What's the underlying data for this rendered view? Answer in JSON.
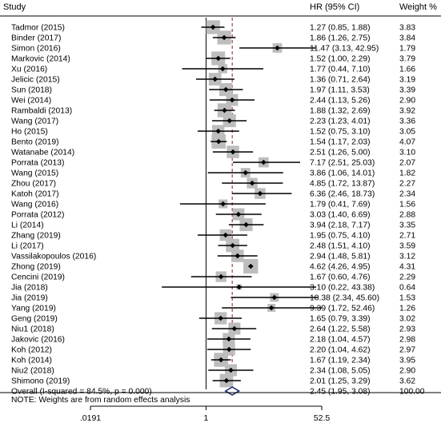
{
  "header": {
    "study": "Study",
    "hr": "HR (95% CI)",
    "weight": "Weight %"
  },
  "chart_data": {
    "type": "forest",
    "scale": "log",
    "xlim": [
      0.0191,
      52.5
    ],
    "x_ticks": [
      ".0191",
      "1",
      "52.5"
    ],
    "null_line": 1,
    "studies": [
      {
        "study": "Tadmor (2015)",
        "hr": 1.27,
        "lo": 0.85,
        "hi": 1.88,
        "ci_text": "1.27 (0.85, 1.88)",
        "weight": "3.83"
      },
      {
        "study": "Binder (2017)",
        "hr": 1.86,
        "lo": 1.26,
        "hi": 2.75,
        "ci_text": "1.86 (1.26, 2.75)",
        "weight": "3.84"
      },
      {
        "study": "Simon (2016)",
        "hr": 11.47,
        "lo": 3.13,
        "hi": 42.95,
        "ci_text": "11.47 (3.13, 42.95)",
        "weight": "1.79"
      },
      {
        "study": "Markovic (2014)",
        "hr": 1.52,
        "lo": 1.0,
        "hi": 2.29,
        "ci_text": "1.52 (1.00, 2.29)",
        "weight": "3.79"
      },
      {
        "study": "Xu (2016)",
        "hr": 1.77,
        "lo": 0.44,
        "hi": 7.1,
        "ci_text": "1.77 (0.44, 7.10)",
        "weight": "1.66"
      },
      {
        "study": "Jelicic (2015)",
        "hr": 1.36,
        "lo": 0.71,
        "hi": 2.64,
        "ci_text": "1.36 (0.71, 2.64)",
        "weight": "3.19"
      },
      {
        "study": "Sun (2018)",
        "hr": 1.97,
        "lo": 1.11,
        "hi": 3.53,
        "ci_text": "1.97 (1.11, 3.53)",
        "weight": "3.39"
      },
      {
        "study": "Wei (2014)",
        "hr": 2.44,
        "lo": 1.13,
        "hi": 5.26,
        "ci_text": "2.44 (1.13, 5.26)",
        "weight": "2.90"
      },
      {
        "study": "Rambaldi (2013)",
        "hr": 1.88,
        "lo": 1.32,
        "hi": 2.69,
        "ci_text": "1.88 (1.32, 2.69)",
        "weight": "3.92"
      },
      {
        "study": "Wang (2017)",
        "hr": 2.23,
        "lo": 1.23,
        "hi": 4.01,
        "ci_text": "2.23 (1.23, 4.01)",
        "weight": "3.36"
      },
      {
        "study": "Ho (2015)",
        "hr": 1.52,
        "lo": 0.75,
        "hi": 3.1,
        "ci_text": "1.52 (0.75, 3.10)",
        "weight": "3.05"
      },
      {
        "study": "Bento (2019)",
        "hr": 1.54,
        "lo": 1.17,
        "hi": 2.03,
        "ci_text": "1.54 (1.17, 2.03)",
        "weight": "4.07"
      },
      {
        "study": "Watanabe (2014)",
        "hr": 2.51,
        "lo": 1.26,
        "hi": 5.0,
        "ci_text": "2.51 (1.26, 5.00)",
        "weight": "3.10"
      },
      {
        "study": "Porrata (2013)",
        "hr": 7.17,
        "lo": 2.51,
        "hi": 25.03,
        "ci_text": "7.17 (2.51, 25.03)",
        "weight": "2.07"
      },
      {
        "study": "Wang (2015)",
        "hr": 3.86,
        "lo": 1.06,
        "hi": 14.01,
        "ci_text": "3.86 (1.06, 14.01)",
        "weight": "1.82"
      },
      {
        "study": "Zhou (2017)",
        "hr": 4.85,
        "lo": 1.72,
        "hi": 13.87,
        "ci_text": "4.85 (1.72, 13.87)",
        "weight": "2.27"
      },
      {
        "study": "Katoh (2017)",
        "hr": 6.36,
        "lo": 2.46,
        "hi": 18.73,
        "ci_text": "6.36 (2.46, 18.73)",
        "weight": "2.34"
      },
      {
        "study": "Wang (2016)",
        "hr": 1.79,
        "lo": 0.41,
        "hi": 7.69,
        "ci_text": "1.79 (0.41, 7.69)",
        "weight": "1.56"
      },
      {
        "study": "Porrata (2012)",
        "hr": 3.03,
        "lo": 1.4,
        "hi": 6.69,
        "ci_text": "3.03 (1.40, 6.69)",
        "weight": "2.88"
      },
      {
        "study": "Li (2014)",
        "hr": 3.94,
        "lo": 2.18,
        "hi": 7.17,
        "ci_text": "3.94 (2.18, 7.17)",
        "weight": "3.35"
      },
      {
        "study": "Zhang (2019)",
        "hr": 1.95,
        "lo": 0.75,
        "hi": 4.1,
        "ci_text": "1.95 (0.75, 4.10)",
        "weight": "2.71"
      },
      {
        "study": "Li (2017)",
        "hr": 2.48,
        "lo": 1.51,
        "hi": 4.1,
        "ci_text": "2.48 (1.51, 4.10)",
        "weight": "3.59"
      },
      {
        "study": "Vassilakopoulos (2016)",
        "hr": 2.94,
        "lo": 1.48,
        "hi": 5.81,
        "ci_text": "2.94 (1.48, 5.81)",
        "weight": "3.12"
      },
      {
        "study": "Zhong (2019)",
        "hr": 4.62,
        "lo": 4.26,
        "hi": 4.95,
        "ci_text": "4.62 (4.26, 4.95)",
        "weight": "4.31"
      },
      {
        "study": "Cencini (2019)",
        "hr": 1.67,
        "lo": 0.6,
        "hi": 4.76,
        "ci_text": "1.67 (0.60, 4.76)",
        "weight": "2.29"
      },
      {
        "study": "Jia (2018)",
        "hr": 3.1,
        "lo": 0.22,
        "hi": 43.38,
        "ci_text": "3.10 (0.22, 43.38)",
        "weight": "0.64"
      },
      {
        "study": "Jia (2019)",
        "hr": 10.38,
        "lo": 2.34,
        "hi": 45.6,
        "ci_text": "10.38 (2.34, 45.60)",
        "weight": "1.53"
      },
      {
        "study": "Yang (2019)",
        "hr": 9.39,
        "lo": 1.72,
        "hi": 52.46,
        "ci_text": "9.39 (1.72, 52.46)",
        "weight": "1.26"
      },
      {
        "study": "Geng (2019)",
        "hr": 1.65,
        "lo": 0.79,
        "hi": 3.39,
        "ci_text": "1.65 (0.79, 3.39)",
        "weight": "3.02"
      },
      {
        "study": "Niu1 (2018)",
        "hr": 2.64,
        "lo": 1.22,
        "hi": 5.58,
        "ci_text": "2.64 (1.22, 5.58)",
        "weight": "2.93"
      },
      {
        "study": "Jakovic (2016)",
        "hr": 2.18,
        "lo": 1.04,
        "hi": 4.57,
        "ci_text": "2.18 (1.04, 4.57)",
        "weight": "2.98"
      },
      {
        "study": "Koh (2012)",
        "hr": 2.2,
        "lo": 1.04,
        "hi": 4.62,
        "ci_text": "2.20 (1.04, 4.62)",
        "weight": "2.97"
      },
      {
        "study": "Koh (2014)",
        "hr": 1.67,
        "lo": 1.19,
        "hi": 2.34,
        "ci_text": "1.67 (1.19, 2.34)",
        "weight": "3.95"
      },
      {
        "study": "Niu2 (2018)",
        "hr": 2.34,
        "lo": 1.08,
        "hi": 5.05,
        "ci_text": "2.34 (1.08, 5.05)",
        "weight": "2.90"
      },
      {
        "study": "Shimono (2019)",
        "hr": 2.01,
        "lo": 1.25,
        "hi": 3.29,
        "ci_text": "2.01 (1.25, 3.29)",
        "weight": "3.62"
      }
    ],
    "overall": {
      "label": "Overall  (I-squared = 84.5%, p = 0.000)",
      "hr": 2.45,
      "lo": 1.95,
      "hi": 3.08,
      "ci_text": "2.45 (1.95, 3.08)",
      "weight": "100.00"
    },
    "note": "NOTE: Weights are from random effects analysis",
    "colors": {
      "box": "#bdbdbd",
      "line": "#000000",
      "overall_line": "#8b1a1a",
      "diamond": "#1b2a6b"
    }
  }
}
